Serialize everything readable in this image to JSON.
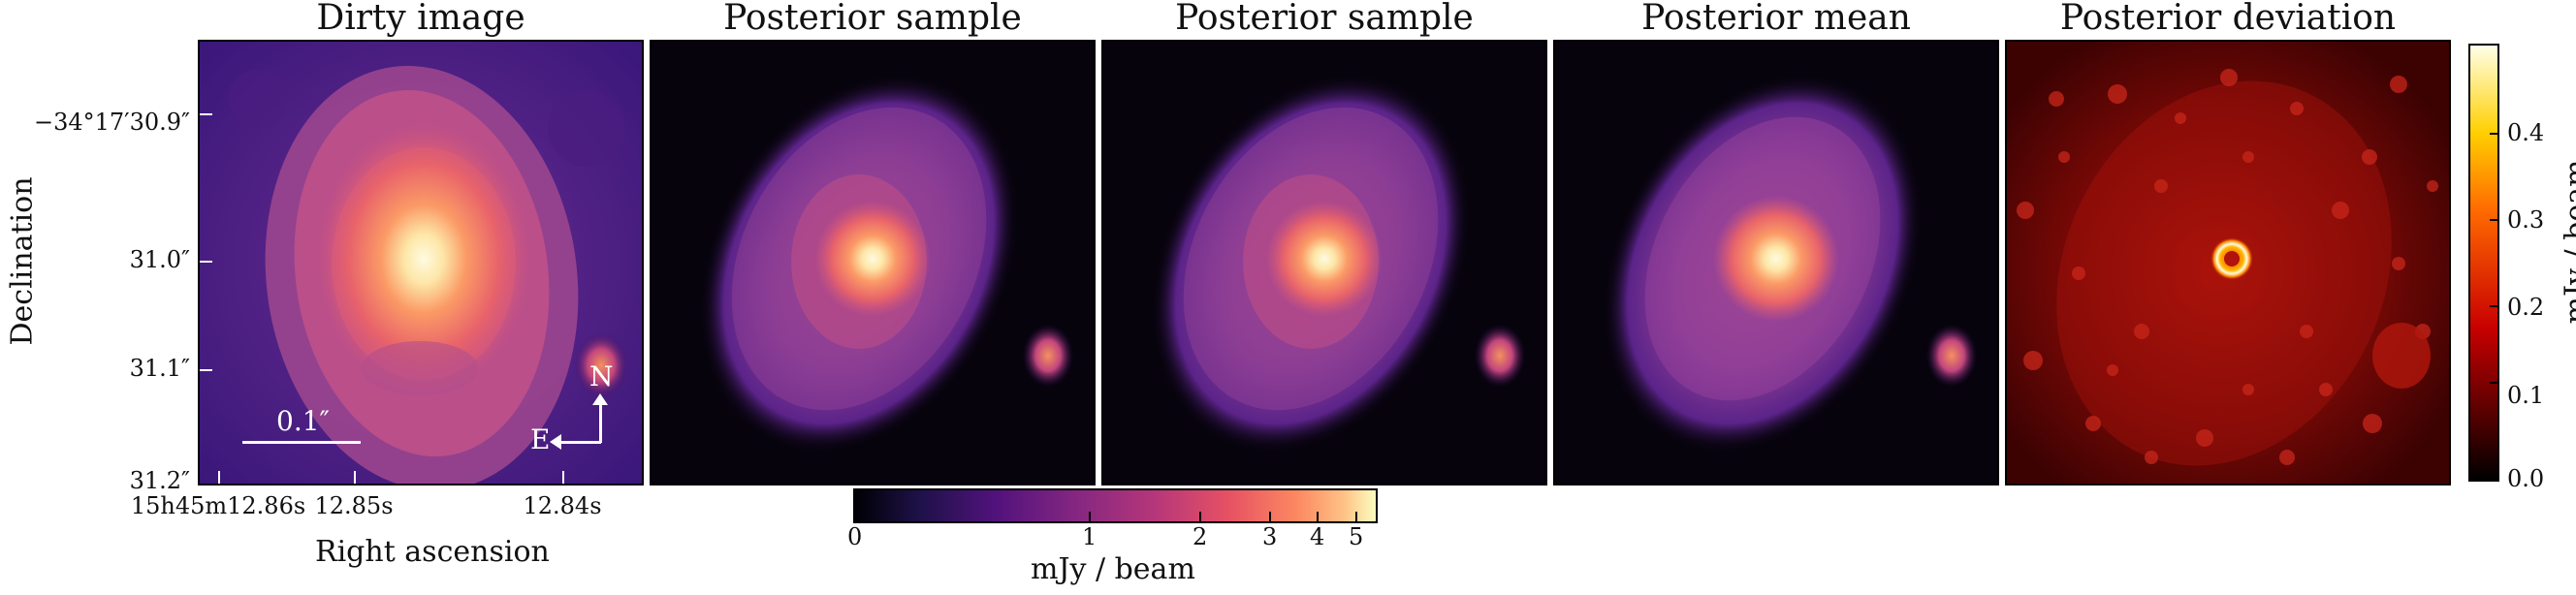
{
  "panels": [
    {
      "title": "Dirty image"
    },
    {
      "title": "Posterior sample"
    },
    {
      "title": "Posterior sample"
    },
    {
      "title": "Posterior mean"
    },
    {
      "title": "Posterior deviation"
    }
  ],
  "axes": {
    "ylabel": "Declination",
    "xlabel": "Right ascension",
    "yticks": [
      "−34°17′30.9″",
      "31.0″",
      "31.1″",
      "31.2″"
    ],
    "xticks": [
      "15h45m12.86s",
      "12.85s",
      "12.84s"
    ]
  },
  "overlay": {
    "scalebar_label": "0.1″",
    "north": "N",
    "east": "E"
  },
  "colorbar_bottom": {
    "label": "mJy / beam",
    "ticks": [
      "0",
      "1",
      "2",
      "3",
      "4",
      "5"
    ],
    "scale": "asinh-like",
    "colormap": "magma"
  },
  "colorbar_right": {
    "label": "mJy / beam",
    "ticks": [
      "0.0",
      "0.1",
      "0.2",
      "0.3",
      "0.4"
    ],
    "colormap": "hot"
  }
}
